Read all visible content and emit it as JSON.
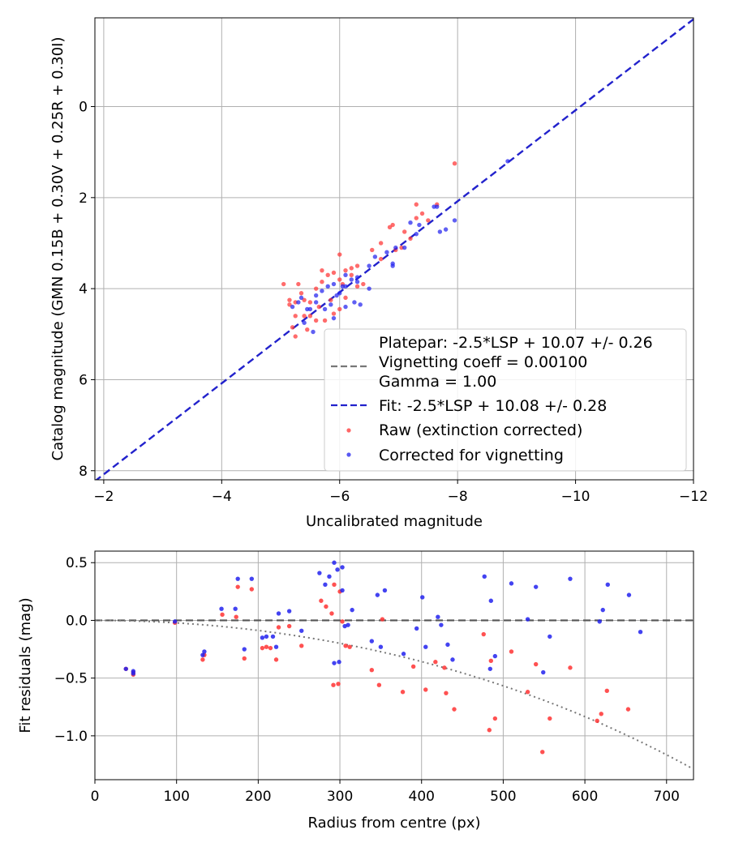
{
  "chart_data": [
    {
      "type": "scatter",
      "xlabel": "Uncalibrated magnitude",
      "ylabel": "Catalog magnitude (GMN 0.15B + 0.30V + 0.25R + 0.30I)",
      "xlim": [
        -1.85,
        -12
      ],
      "ylim": [
        8.2,
        -1.95
      ],
      "xticks": [
        -2,
        -4,
        -6,
        -8,
        -10,
        -12
      ],
      "xtick_labels": [
        "−2",
        "−4",
        "−6",
        "−8",
        "−10",
        "−12"
      ],
      "yticks": [
        0,
        2,
        4,
        6,
        8
      ],
      "ytick_labels": [
        "0",
        "2",
        "4",
        "6",
        "8"
      ],
      "grid": true,
      "legend_position": "lower-right",
      "legend": [
        {
          "kind": "text",
          "label": "Platepar: -2.5*LSP + 10.07 +/- 0.26"
        },
        {
          "kind": "gray-dash",
          "label": "Vignetting coeff = 0.00100"
        },
        {
          "kind": "text",
          "label": "Gamma = 1.00"
        },
        {
          "kind": "blue-dash",
          "label": "Fit: -2.5*LSP + 10.08 +/- 0.28"
        },
        {
          "kind": "red-dot",
          "label": "Raw (extinction corrected)"
        },
        {
          "kind": "blue-dot",
          "label": "Corrected for vignetting"
        }
      ],
      "fit_line": {
        "slope": 1,
        "intercept": 10.08,
        "color": "#2222cc"
      },
      "series": [
        {
          "name": "Raw (extinction corrected)",
          "color": "#ff3333",
          "points": [
            [
              -7.95,
              1.25
            ],
            [
              -7.4,
              2.35
            ],
            [
              -7.3,
              2.15
            ],
            [
              -7.3,
              2.45
            ],
            [
              -7.5,
              2.5
            ],
            [
              -7.65,
              2.15
            ],
            [
              -6.9,
              2.6
            ],
            [
              -6.85,
              2.65
            ],
            [
              -7.1,
              2.75
            ],
            [
              -7.05,
              3.1
            ],
            [
              -6.95,
              3.15
            ],
            [
              -7.2,
              2.9
            ],
            [
              -6.7,
              3.0
            ],
            [
              -6.55,
              3.15
            ],
            [
              -6.7,
              3.35
            ],
            [
              -6.3,
              3.5
            ],
            [
              -6.2,
              3.55
            ],
            [
              -6.1,
              3.6
            ],
            [
              -6.0,
              3.25
            ],
            [
              -6.0,
              3.8
            ],
            [
              -6.05,
              3.9
            ],
            [
              -5.9,
              3.65
            ],
            [
              -5.8,
              3.7
            ],
            [
              -5.7,
              3.85
            ],
            [
              -5.6,
              4.0
            ],
            [
              -5.5,
              4.3
            ],
            [
              -5.35,
              4.1
            ],
            [
              -5.25,
              4.3
            ],
            [
              -5.15,
              4.35
            ],
            [
              -5.3,
              3.9
            ],
            [
              -5.05,
              3.9
            ],
            [
              -5.25,
              4.6
            ],
            [
              -5.4,
              4.6
            ],
            [
              -5.5,
              4.6
            ],
            [
              -5.6,
              4.7
            ],
            [
              -5.75,
              4.7
            ],
            [
              -5.9,
              4.55
            ],
            [
              -6.1,
              4.2
            ],
            [
              -6.3,
              3.95
            ],
            [
              -5.2,
              4.85
            ],
            [
              -5.45,
              4.9
            ],
            [
              -5.25,
              5.05
            ],
            [
              -5.7,
              3.6
            ],
            [
              -5.65,
              4.4
            ],
            [
              -5.85,
              4.25
            ],
            [
              -6.0,
              4.45
            ],
            [
              -5.15,
              4.25
            ],
            [
              -5.4,
              4.25
            ],
            [
              -6.4,
              3.9
            ],
            [
              -6.2,
              3.7
            ]
          ]
        },
        {
          "name": "Corrected for vignetting",
          "color": "#2222ee",
          "points": [
            [
              -8.85,
              1.2
            ],
            [
              -7.95,
              2.5
            ],
            [
              -7.8,
              2.7
            ],
            [
              -7.7,
              2.75
            ],
            [
              -7.65,
              2.2
            ],
            [
              -7.6,
              2.2
            ],
            [
              -7.35,
              2.6
            ],
            [
              -7.2,
              2.55
            ],
            [
              -7.3,
              2.8
            ],
            [
              -7.1,
              3.1
            ],
            [
              -6.95,
              3.1
            ],
            [
              -6.9,
              3.45
            ],
            [
              -6.9,
              3.5
            ],
            [
              -6.8,
              3.2
            ],
            [
              -6.6,
              3.3
            ],
            [
              -6.5,
              3.5
            ],
            [
              -6.5,
              4.0
            ],
            [
              -6.3,
              3.75
            ],
            [
              -6.3,
              3.85
            ],
            [
              -6.2,
              3.8
            ],
            [
              -6.1,
              3.7
            ],
            [
              -6.05,
              3.95
            ],
            [
              -6.0,
              4.1
            ],
            [
              -5.9,
              3.9
            ],
            [
              -5.8,
              3.95
            ],
            [
              -5.7,
              4.05
            ],
            [
              -5.6,
              4.15
            ],
            [
              -5.6,
              4.3
            ],
            [
              -5.5,
              4.45
            ],
            [
              -5.45,
              4.45
            ],
            [
              -5.3,
              4.3
            ],
            [
              -5.35,
              4.2
            ],
            [
              -5.4,
              4.75
            ],
            [
              -5.55,
              4.95
            ],
            [
              -5.2,
              4.4
            ],
            [
              -5.75,
              4.45
            ],
            [
              -5.85,
              4.35
            ],
            [
              -5.9,
              4.65
            ],
            [
              -6.1,
              4.4
            ],
            [
              -6.25,
              4.3
            ],
            [
              -6.35,
              4.35
            ],
            [
              -6.1,
              3.95
            ],
            [
              -5.95,
              4.15
            ]
          ]
        }
      ]
    },
    {
      "type": "scatter",
      "xlabel": "Radius from centre (px)",
      "ylabel": "Fit residuals (mag)",
      "xlim": [
        0,
        733
      ],
      "ylim": [
        -1.38,
        0.6
      ],
      "xticks": [
        0,
        100,
        200,
        300,
        400,
        500,
        600,
        700
      ],
      "xtick_labels": [
        "0",
        "100",
        "200",
        "300",
        "400",
        "500",
        "600",
        "700"
      ],
      "yticks": [
        0.5,
        0.0,
        -0.5,
        -1.0
      ],
      "ytick_labels": [
        "0.5",
        "0.0",
        "−0.5",
        "−1.0"
      ],
      "grid": true,
      "zero_line": 0.0,
      "vignetting_curve": {
        "coeff": 0.001,
        "gamma": 1.0
      },
      "series": [
        {
          "name": "Raw (extinction corrected)",
          "color": "#ff3333",
          "points": [
            [
              38,
              -0.42
            ],
            [
              47,
              -0.45
            ],
            [
              47,
              -0.47
            ],
            [
              98,
              -0.02
            ],
            [
              132,
              -0.34
            ],
            [
              134,
              -0.3
            ],
            [
              156,
              0.05
            ],
            [
              173,
              0.03
            ],
            [
              175,
              0.29
            ],
            [
              183,
              -0.33
            ],
            [
              192,
              0.27
            ],
            [
              205,
              -0.24
            ],
            [
              210,
              -0.23
            ],
            [
              215,
              -0.24
            ],
            [
              222,
              -0.34
            ],
            [
              225,
              -0.06
            ],
            [
              238,
              -0.05
            ],
            [
              253,
              -0.22
            ],
            [
              277,
              0.17
            ],
            [
              283,
              0.12
            ],
            [
              290,
              0.06
            ],
            [
              292,
              -0.56
            ],
            [
              293,
              0.31
            ],
            [
              298,
              -0.55
            ],
            [
              300,
              0.25
            ],
            [
              303,
              -0.01
            ],
            [
              307,
              -0.22
            ],
            [
              312,
              -0.23
            ],
            [
              339,
              -0.43
            ],
            [
              348,
              -0.56
            ],
            [
              352,
              0.01
            ],
            [
              377,
              -0.62
            ],
            [
              390,
              -0.4
            ],
            [
              405,
              -0.6
            ],
            [
              417,
              -0.36
            ],
            [
              428,
              -0.41
            ],
            [
              430,
              -0.63
            ],
            [
              440,
              -0.77
            ],
            [
              476,
              -0.12
            ],
            [
              483,
              -0.95
            ],
            [
              485,
              -0.35
            ],
            [
              490,
              -0.85
            ],
            [
              510,
              -0.27
            ],
            [
              530,
              -0.62
            ],
            [
              540,
              -0.38
            ],
            [
              548,
              -1.14
            ],
            [
              557,
              -0.85
            ],
            [
              582,
              -0.41
            ],
            [
              620,
              -0.81
            ],
            [
              627,
              -0.61
            ],
            [
              653,
              -0.77
            ],
            [
              615,
              -0.87
            ]
          ]
        },
        {
          "name": "Corrected for vignetting",
          "color": "#2222ee",
          "points": [
            [
              38,
              -0.42
            ],
            [
              47,
              -0.44
            ],
            [
              47,
              -0.46
            ],
            [
              98,
              -0.01
            ],
            [
              132,
              -0.3
            ],
            [
              134,
              -0.27
            ],
            [
              155,
              0.1
            ],
            [
              172,
              0.1
            ],
            [
              175,
              0.36
            ],
            [
              183,
              -0.25
            ],
            [
              192,
              0.36
            ],
            [
              205,
              -0.15
            ],
            [
              210,
              -0.14
            ],
            [
              218,
              -0.14
            ],
            [
              222,
              -0.23
            ],
            [
              225,
              0.06
            ],
            [
              238,
              0.08
            ],
            [
              253,
              -0.09
            ],
            [
              275,
              0.41
            ],
            [
              282,
              0.31
            ],
            [
              287,
              0.38
            ],
            [
              293,
              -0.37
            ],
            [
              293,
              0.5
            ],
            [
              297,
              0.44
            ],
            [
              299,
              -0.36
            ],
            [
              303,
              0.46
            ],
            [
              303,
              0.26
            ],
            [
              306,
              -0.05
            ],
            [
              310,
              -0.04
            ],
            [
              315,
              0.09
            ],
            [
              339,
              -0.18
            ],
            [
              346,
              0.22
            ],
            [
              350,
              -0.23
            ],
            [
              355,
              0.26
            ],
            [
              378,
              -0.29
            ],
            [
              394,
              -0.07
            ],
            [
              401,
              0.2
            ],
            [
              405,
              -0.23
            ],
            [
              420,
              0.03
            ],
            [
              424,
              -0.04
            ],
            [
              432,
              -0.21
            ],
            [
              438,
              -0.34
            ],
            [
              477,
              0.38
            ],
            [
              484,
              -0.42
            ],
            [
              485,
              0.17
            ],
            [
              490,
              -0.31
            ],
            [
              510,
              0.32
            ],
            [
              530,
              0.01
            ],
            [
              540,
              0.29
            ],
            [
              549,
              -0.45
            ],
            [
              557,
              -0.14
            ],
            [
              582,
              0.36
            ],
            [
              618,
              -0.01
            ],
            [
              622,
              0.09
            ],
            [
              628,
              0.31
            ],
            [
              654,
              0.22
            ],
            [
              668,
              -0.1
            ]
          ]
        }
      ]
    }
  ]
}
